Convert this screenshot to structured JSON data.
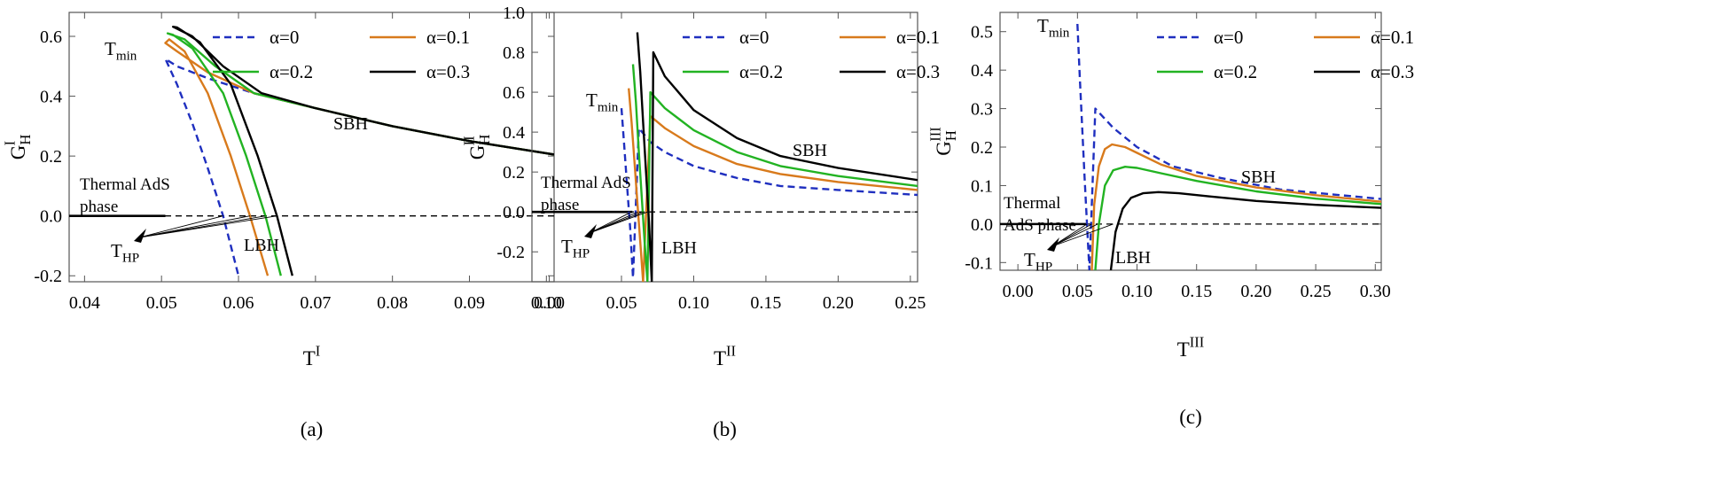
{
  "figure": {
    "legend_labels": [
      "α=0",
      "α=0.1",
      "α=0.2",
      "α=0.3"
    ],
    "series_styles": [
      {
        "alpha": "0",
        "color": "#1f2fbf",
        "dash": true
      },
      {
        "alpha": "0.1",
        "color": "#d87a1c",
        "dash": false
      },
      {
        "alpha": "0.2",
        "color": "#22b322",
        "dash": false
      },
      {
        "alpha": "0.3",
        "color": "#000000",
        "dash": false
      }
    ]
  },
  "chart_data": [
    {
      "type": "line",
      "panel": "(a)",
      "xlabel": "T",
      "xlabel_sup": "I",
      "ylabel": "G",
      "ylabel_sub": "H",
      "ylabel_sup": "I",
      "xlim": [
        0.038,
        0.101
      ],
      "ylim": [
        -0.22,
        0.68
      ],
      "xticks": [
        0.04,
        0.05,
        0.06,
        0.07,
        0.08,
        0.09,
        0.1
      ],
      "xtick_labels": [
        "0.04",
        "0.05",
        "0.06",
        "0.07",
        "0.08",
        "0.09",
        "0.10"
      ],
      "yticks": [
        -0.2,
        0.0,
        0.2,
        0.4,
        0.6
      ],
      "ytick_labels": [
        "-0.2",
        "0.0",
        "0.2",
        "0.4",
        "0.6"
      ],
      "annotations": {
        "tmin": "T",
        "tmin_sub": "min",
        "thp": "T",
        "thp_sub": "HP",
        "sbh": "SBH",
        "lbh": "LBH",
        "phase_line1": "Thermal AdS",
        "phase_line2": "phase"
      },
      "series": [
        {
          "name": "α=0",
          "x": [
            0.101,
            0.09,
            0.08,
            0.07,
            0.062,
            0.056,
            0.052,
            0.0505,
            0.0505,
            0.052,
            0.054,
            0.056,
            0.058,
            0.06
          ],
          "y": [
            0.205,
            0.25,
            0.3,
            0.36,
            0.41,
            0.46,
            0.5,
            0.525,
            0.525,
            0.44,
            0.31,
            0.16,
            0.0,
            -0.2
          ]
        },
        {
          "name": "α=0.1",
          "x": [
            0.101,
            0.09,
            0.08,
            0.07,
            0.062,
            0.056,
            0.052,
            0.0505,
            0.051,
            0.053,
            0.056,
            0.059,
            0.0615,
            0.0638
          ],
          "y": [
            0.205,
            0.25,
            0.3,
            0.36,
            0.41,
            0.48,
            0.55,
            0.578,
            0.59,
            0.55,
            0.41,
            0.2,
            0.0,
            -0.2
          ]
        },
        {
          "name": "α=0.2",
          "x": [
            0.101,
            0.09,
            0.08,
            0.07,
            0.062,
            0.057,
            0.053,
            0.0508,
            0.0515,
            0.054,
            0.058,
            0.061,
            0.0635,
            0.0655
          ],
          "y": [
            0.205,
            0.25,
            0.3,
            0.36,
            0.41,
            0.5,
            0.59,
            0.61,
            0.605,
            0.56,
            0.41,
            0.2,
            0.0,
            -0.2
          ]
        },
        {
          "name": "α=0.3",
          "x": [
            0.101,
            0.09,
            0.08,
            0.07,
            0.063,
            0.058,
            0.054,
            0.0515,
            0.052,
            0.055,
            0.059,
            0.0625,
            0.065,
            0.067
          ],
          "y": [
            0.205,
            0.25,
            0.3,
            0.36,
            0.41,
            0.5,
            0.6,
            0.632,
            0.63,
            0.58,
            0.44,
            0.2,
            0.0,
            -0.2
          ]
        }
      ],
      "thermal_ads_line": {
        "x": [
          0.038,
          0.0505
        ],
        "y": [
          0.0,
          0.0
        ]
      },
      "thp_points": [
        0.058,
        0.0615,
        0.0635,
        0.065
      ]
    },
    {
      "type": "line",
      "panel": "(b)",
      "xlabel": "T",
      "xlabel_sup": "II",
      "ylabel": "G",
      "ylabel_sub": "H",
      "ylabel_sup": "II",
      "xlim": [
        -0.012,
        0.255
      ],
      "ylim": [
        -0.35,
        1.0
      ],
      "xticks": [
        0.0,
        0.05,
        0.1,
        0.15,
        0.2,
        0.25
      ],
      "xtick_labels": [
        "0.00",
        "0.05",
        "0.10",
        "0.15",
        "0.20",
        "0.25"
      ],
      "yticks": [
        -0.2,
        0.0,
        0.2,
        0.4,
        0.6,
        0.8,
        1.0
      ],
      "ytick_labels": [
        "-0.2",
        "0.0",
        "0.2",
        "0.4",
        "0.6",
        "0.8",
        "1.0"
      ],
      "annotations": {
        "tmin": "T",
        "tmin_sub": "min",
        "thp": "T",
        "thp_sub": "HP",
        "sbh": "SBH",
        "lbh": "LBH",
        "phase_line1": "Thermal AdS",
        "phase_line2": "phase"
      },
      "series": [
        {
          "name": "α=0",
          "x": [
            0.05,
            0.052,
            0.054,
            0.056,
            0.058,
            0.062,
            0.07,
            0.08,
            0.1,
            0.13,
            0.16,
            0.2,
            0.255
          ],
          "y": [
            0.52,
            0.32,
            0.12,
            -0.08,
            -0.33,
            0.42,
            0.35,
            0.3,
            0.23,
            0.17,
            0.13,
            0.11,
            0.085
          ]
        },
        {
          "name": "α=0.1",
          "x": [
            0.055,
            0.057,
            0.059,
            0.061,
            0.063,
            0.065,
            0.07,
            0.08,
            0.1,
            0.13,
            0.16,
            0.2,
            0.255
          ],
          "y": [
            0.62,
            0.45,
            0.25,
            0.05,
            -0.15,
            -0.35,
            0.48,
            0.42,
            0.33,
            0.24,
            0.19,
            0.15,
            0.11
          ]
        },
        {
          "name": "α=0.2",
          "x": [
            0.058,
            0.06,
            0.062,
            0.064,
            0.066,
            0.068,
            0.07,
            0.08,
            0.1,
            0.13,
            0.16,
            0.2,
            0.255
          ],
          "y": [
            0.74,
            0.55,
            0.3,
            0.08,
            -0.15,
            -0.35,
            0.6,
            0.52,
            0.41,
            0.3,
            0.23,
            0.18,
            0.13
          ]
        },
        {
          "name": "α=0.3",
          "x": [
            0.061,
            0.063,
            0.065,
            0.067,
            0.069,
            0.071,
            0.072,
            0.08,
            0.1,
            0.13,
            0.16,
            0.2,
            0.255
          ],
          "y": [
            0.9,
            0.7,
            0.45,
            0.2,
            -0.05,
            -0.35,
            0.8,
            0.68,
            0.51,
            0.37,
            0.28,
            0.22,
            0.16
          ]
        }
      ],
      "thermal_ads_line": {
        "x": [
          -0.012,
          0.0575
        ],
        "y": [
          0.0,
          0.0
        ]
      },
      "thp_points": [
        0.057,
        0.0615,
        0.065,
        0.068
      ]
    },
    {
      "type": "line",
      "panel": "(c)",
      "xlabel": "T",
      "xlabel_sup": "III",
      "ylabel": "G",
      "ylabel_sub": "H",
      "ylabel_sup": "III",
      "xlim": [
        -0.015,
        0.305
      ],
      "ylim": [
        -0.12,
        0.55
      ],
      "xticks": [
        0.0,
        0.05,
        0.1,
        0.15,
        0.2,
        0.25,
        0.3
      ],
      "xtick_labels": [
        "0.00",
        "0.05",
        "0.10",
        "0.15",
        "0.20",
        "0.25",
        "0.30"
      ],
      "yticks": [
        -0.1,
        0.0,
        0.1,
        0.2,
        0.3,
        0.4,
        0.5
      ],
      "ytick_labels": [
        "-0.1",
        "0.0",
        "0.1",
        "0.2",
        "0.3",
        "0.4",
        "0.5"
      ],
      "annotations": {
        "tmin": "T",
        "tmin_sub": "min",
        "thp": "T",
        "thp_sub": "HP",
        "sbh": "SBH",
        "lbh": "LBH",
        "phase_line1": "Thermal",
        "phase_line2": "AdS  phase"
      },
      "series": [
        {
          "name": "α=0",
          "x": [
            0.05,
            0.052,
            0.054,
            0.056,
            0.058,
            0.06,
            0.065,
            0.08,
            0.1,
            0.13,
            0.17,
            0.22,
            0.305
          ],
          "y": [
            0.52,
            0.38,
            0.25,
            0.12,
            0.0,
            -0.12,
            0.3,
            0.25,
            0.2,
            0.15,
            0.12,
            0.09,
            0.065
          ]
        },
        {
          "name": "α=0.1",
          "x": [
            0.062,
            0.064,
            0.068,
            0.073,
            0.079,
            0.09,
            0.1,
            0.12,
            0.15,
            0.2,
            0.25,
            0.305
          ],
          "y": [
            -0.12,
            0.05,
            0.15,
            0.195,
            0.207,
            0.2,
            0.185,
            0.155,
            0.125,
            0.095,
            0.075,
            0.058
          ]
        },
        {
          "name": "α=0.2",
          "x": [
            0.065,
            0.068,
            0.073,
            0.08,
            0.09,
            0.1,
            0.12,
            0.15,
            0.2,
            0.25,
            0.305
          ],
          "y": [
            -0.12,
            0.0,
            0.1,
            0.14,
            0.149,
            0.146,
            0.132,
            0.112,
            0.085,
            0.066,
            0.052
          ]
        },
        {
          "name": "α=0.3",
          "x": [
            0.078,
            0.082,
            0.088,
            0.095,
            0.105,
            0.118,
            0.135,
            0.16,
            0.2,
            0.25,
            0.305
          ],
          "y": [
            -0.12,
            -0.02,
            0.04,
            0.068,
            0.08,
            0.083,
            0.08,
            0.072,
            0.06,
            0.05,
            0.042
          ]
        }
      ],
      "thermal_ads_line": {
        "x": [
          -0.015,
          0.058
        ],
        "y": [
          0.0,
          0.0
        ]
      },
      "thp_points": [
        0.058,
        0.062,
        0.067,
        0.08
      ]
    }
  ]
}
